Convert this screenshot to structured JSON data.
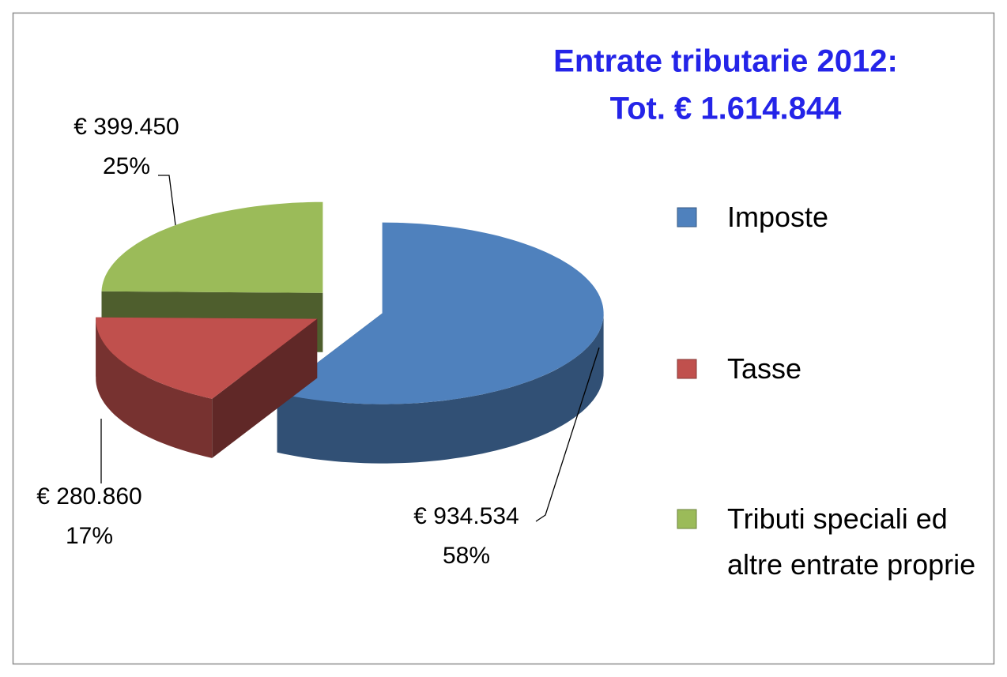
{
  "chart_data": {
    "type": "pie3d",
    "title": "Entrate tributarie 2012:",
    "subtitle": "Tot. € 1.614.844",
    "categories": [
      "Imposte",
      "Tasse",
      "Tributi speciali ed altre entrate proprie"
    ],
    "values": [
      934534,
      280860,
      399450
    ],
    "value_labels": [
      "€ 934.534",
      "€ 280.860",
      "€ 399.450"
    ],
    "percent_labels": [
      "58%",
      "17%",
      "25%"
    ],
    "colors": [
      "#4f81bd",
      "#c0504d",
      "#9bbb59"
    ],
    "legend": "right"
  }
}
